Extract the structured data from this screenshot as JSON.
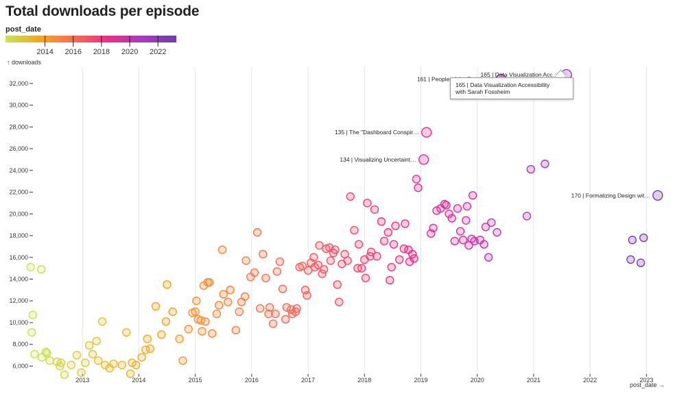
{
  "chart_data": {
    "type": "scatter",
    "title": "Total downloads per episode",
    "legend_title": "post_date",
    "legend_ticks": [
      "2014",
      "2016",
      "2018",
      "2020",
      "2022"
    ],
    "ylabel": "↑ downloads",
    "xlabel": "post_date →",
    "yticks": [
      "6,000",
      "8,000",
      "10,000",
      "12,000",
      "14,000",
      "16,000",
      "18,000",
      "20,000",
      "22,000",
      "24,000",
      "26,000",
      "28,000",
      "30,000",
      "32,000"
    ],
    "xticks": [
      "2013",
      "2014",
      "2015",
      "2016",
      "2017",
      "2018",
      "2019",
      "2020",
      "2021",
      "2022",
      "2023"
    ],
    "ylim": [
      5400,
      33500
    ],
    "xlim": [
      2012.0,
      2023.3
    ],
    "grid": "vertical",
    "color_scale": [
      "#c5e65a",
      "#f5a623",
      "#fa6a52",
      "#ee2e86",
      "#a33dbf",
      "#6e3fa8"
    ],
    "points": [
      [
        2012.08,
        15100
      ],
      [
        2012.27,
        14900
      ],
      [
        2012.12,
        10700
      ],
      [
        2012.1,
        9100
      ],
      [
        2012.15,
        7100
      ],
      [
        2012.28,
        6800
      ],
      [
        2012.35,
        7300
      ],
      [
        2012.37,
        7200
      ],
      [
        2012.42,
        6500
      ],
      [
        2012.55,
        6400
      ],
      [
        2012.62,
        6300
      ],
      [
        2012.6,
        6000
      ],
      [
        2012.68,
        5200
      ],
      [
        2012.8,
        6100
      ],
      [
        2012.9,
        7000
      ],
      [
        2012.98,
        5400
      ],
      [
        2013.05,
        6300
      ],
      [
        2013.12,
        7900
      ],
      [
        2013.18,
        7100
      ],
      [
        2013.25,
        8300
      ],
      [
        2013.28,
        6500
      ],
      [
        2013.35,
        10100
      ],
      [
        2013.4,
        6100
      ],
      [
        2013.48,
        5800
      ],
      [
        2013.55,
        6200
      ],
      [
        2013.7,
        6100
      ],
      [
        2013.78,
        9100
      ],
      [
        2013.85,
        5300
      ],
      [
        2013.88,
        6300
      ],
      [
        2013.95,
        6100
      ],
      [
        2014.05,
        6800
      ],
      [
        2014.12,
        7500
      ],
      [
        2014.15,
        8500
      ],
      [
        2014.2,
        7600
      ],
      [
        2014.3,
        11500
      ],
      [
        2014.4,
        8900
      ],
      [
        2014.48,
        10100
      ],
      [
        2014.5,
        13500
      ],
      [
        2014.6,
        11000
      ],
      [
        2014.72,
        8500
      ],
      [
        2014.78,
        6500
      ],
      [
        2014.88,
        9400
      ],
      [
        2014.95,
        10900
      ],
      [
        2015.0,
        11000
      ],
      [
        2015.02,
        12000
      ],
      [
        2015.05,
        10300
      ],
      [
        2015.1,
        10200
      ],
      [
        2015.12,
        9200
      ],
      [
        2015.15,
        13400
      ],
      [
        2015.18,
        10100
      ],
      [
        2015.22,
        13700
      ],
      [
        2015.25,
        13700
      ],
      [
        2015.3,
        9000
      ],
      [
        2015.38,
        10800
      ],
      [
        2015.42,
        11600
      ],
      [
        2015.48,
        16700
      ],
      [
        2015.5,
        12600
      ],
      [
        2015.58,
        11900
      ],
      [
        2015.62,
        13000
      ],
      [
        2015.72,
        9300
      ],
      [
        2015.78,
        11000
      ],
      [
        2015.82,
        11900
      ],
      [
        2015.88,
        12400
      ],
      [
        2015.9,
        15700
      ],
      [
        2015.98,
        14200
      ],
      [
        2016.05,
        14600
      ],
      [
        2016.1,
        18300
      ],
      [
        2016.15,
        11300
      ],
      [
        2016.2,
        16300
      ],
      [
        2016.25,
        14100
      ],
      [
        2016.3,
        10800
      ],
      [
        2016.32,
        11400
      ],
      [
        2016.38,
        9900
      ],
      [
        2016.42,
        10800
      ],
      [
        2016.45,
        14700
      ],
      [
        2016.5,
        15600
      ],
      [
        2016.55,
        13100
      ],
      [
        2016.6,
        10300
      ],
      [
        2016.62,
        11400
      ],
      [
        2016.7,
        11200
      ],
      [
        2016.72,
        10800
      ],
      [
        2016.78,
        11000
      ],
      [
        2016.8,
        11300
      ],
      [
        2016.85,
        15100
      ],
      [
        2016.9,
        15200
      ],
      [
        2016.95,
        13000
      ],
      [
        2016.98,
        12500
      ],
      [
        2017.0,
        14800
      ],
      [
        2017.05,
        15500
      ],
      [
        2017.1,
        16000
      ],
      [
        2017.12,
        15100
      ],
      [
        2017.18,
        15300
      ],
      [
        2017.2,
        17100
      ],
      [
        2017.25,
        14500
      ],
      [
        2017.28,
        14900
      ],
      [
        2017.32,
        16800
      ],
      [
        2017.38,
        16900
      ],
      [
        2017.4,
        15700
      ],
      [
        2017.45,
        16400
      ],
      [
        2017.48,
        16700
      ],
      [
        2017.52,
        13500
      ],
      [
        2017.55,
        11900
      ],
      [
        2017.6,
        15400
      ],
      [
        2017.65,
        16300
      ],
      [
        2017.7,
        15700
      ],
      [
        2017.75,
        21600
      ],
      [
        2017.82,
        18500
      ],
      [
        2017.88,
        15000
      ],
      [
        2017.9,
        17200
      ],
      [
        2017.95,
        15000
      ],
      [
        2018.0,
        15800
      ],
      [
        2018.02,
        14100
      ],
      [
        2018.05,
        21000
      ],
      [
        2018.1,
        16100
      ],
      [
        2018.12,
        16500
      ],
      [
        2018.18,
        20400
      ],
      [
        2018.22,
        16100
      ],
      [
        2018.3,
        19300
      ],
      [
        2018.35,
        17500
      ],
      [
        2018.42,
        18300
      ],
      [
        2018.45,
        13900
      ],
      [
        2018.48,
        15100
      ],
      [
        2018.52,
        17200
      ],
      [
        2018.55,
        18900
      ],
      [
        2018.62,
        15800
      ],
      [
        2018.7,
        16800
      ],
      [
        2018.72,
        19100
      ],
      [
        2018.78,
        16700
      ],
      [
        2018.8,
        15600
      ],
      [
        2018.85,
        16300
      ],
      [
        2018.88,
        15900
      ],
      [
        2018.92,
        23200
      ],
      [
        2018.95,
        22400
      ],
      [
        2019.05,
        25000
      ],
      [
        2019.1,
        27500
      ],
      [
        2019.18,
        18200
      ],
      [
        2019.22,
        18700
      ],
      [
        2019.28,
        20300
      ],
      [
        2019.35,
        20500
      ],
      [
        2019.42,
        20900
      ],
      [
        2019.45,
        20800
      ],
      [
        2019.5,
        20000
      ],
      [
        2019.55,
        19600
      ],
      [
        2019.6,
        17500
      ],
      [
        2019.65,
        20500
      ],
      [
        2019.7,
        18400
      ],
      [
        2019.75,
        17600
      ],
      [
        2019.8,
        19400
      ],
      [
        2019.82,
        20700
      ],
      [
        2019.85,
        17100
      ],
      [
        2019.92,
        21700
      ],
      [
        2019.9,
        17700
      ],
      [
        2019.95,
        17500
      ],
      [
        2020.05,
        17600
      ],
      [
        2020.12,
        17200
      ],
      [
        2020.15,
        18800
      ],
      [
        2020.2,
        16000
      ],
      [
        2020.25,
        19200
      ],
      [
        2020.35,
        18300
      ],
      [
        2020.42,
        32400
      ],
      [
        2020.88,
        19800
      ],
      [
        2020.95,
        24100
      ],
      [
        2021.2,
        24600
      ],
      [
        2021.58,
        32800
      ],
      [
        2022.72,
        15800
      ],
      [
        2022.75,
        17600
      ],
      [
        2022.9,
        15500
      ],
      [
        2022.95,
        17800
      ],
      [
        2023.2,
        21700
      ]
    ],
    "annotations": [
      {
        "label": "165  |  Data Visualization Acc…",
        "x": 2021.58,
        "y": 32800
      },
      {
        "label": "161  |  People of the Pandemic",
        "x": 2020.42,
        "y": 32400
      },
      {
        "label": "135  |  The \"Dashboard Conspir…",
        "x": 2019.1,
        "y": 27500
      },
      {
        "label": "134  |  Visualizing Uncertaint…",
        "x": 2019.05,
        "y": 25000
      },
      {
        "label": "170  |  Formalizing Design wit…",
        "x": 2023.2,
        "y": 21700
      }
    ]
  },
  "tooltip": {
    "line1": "165  |  Data Visualization Accessibility",
    "line2": "with Sarah Fossheim"
  }
}
